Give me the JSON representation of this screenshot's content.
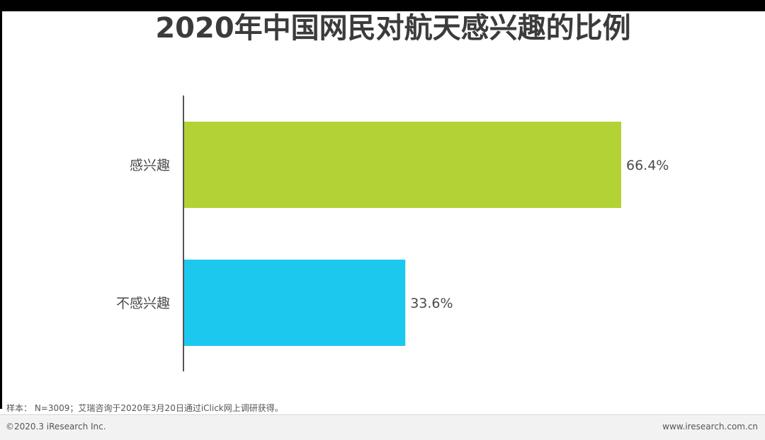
{
  "title": "2020年中国网民对航天感兴趣的比例",
  "chart_data": {
    "type": "bar",
    "orientation": "horizontal",
    "title": "2020年中国网民对航天感兴趣的比例",
    "categories": [
      "感兴趣",
      "不感兴趣"
    ],
    "values": [
      66.4,
      33.6
    ],
    "value_labels": [
      "66.4%",
      "33.6%"
    ],
    "colors": [
      "#b2d235",
      "#1dc8ef"
    ],
    "xlim": [
      0,
      100
    ],
    "grid": false,
    "legend": "none"
  },
  "footer": {
    "note": "样本： N=3009；艾瑞咨询于2020年3月20日通过iClick网上调研获得。",
    "copyright": "©2020.3 iResearch Inc.",
    "website": "www.iresearch.com.cn"
  }
}
